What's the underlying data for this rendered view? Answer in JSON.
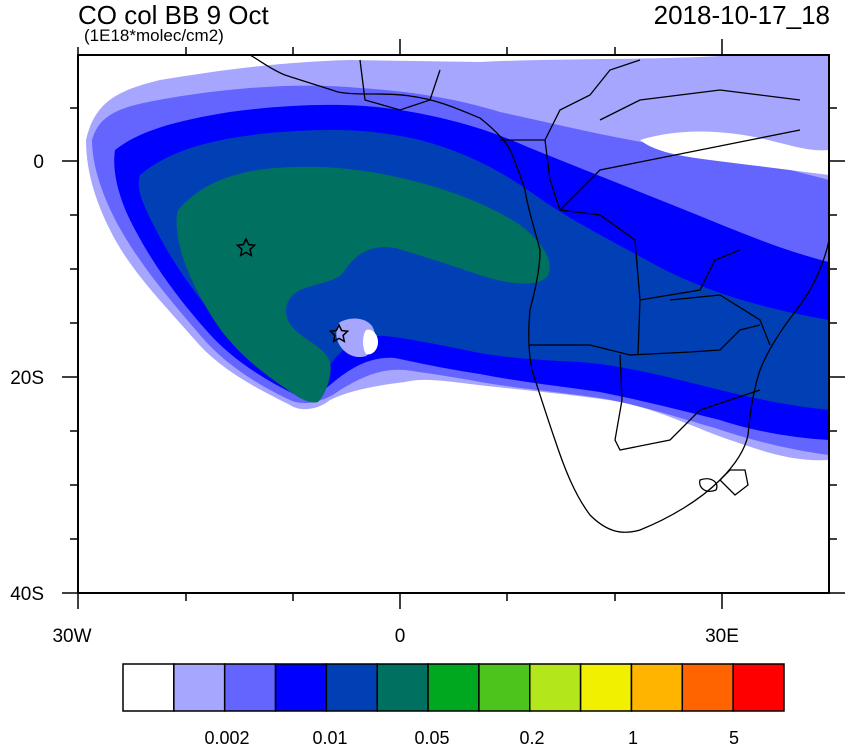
{
  "header": {
    "title": "CO col BB 9 Oct",
    "units": "(1E18*molec/cm2)",
    "timestamp": "2018-10-17_18"
  },
  "map": {
    "lat_labels": [
      "0",
      "20S",
      "40S"
    ],
    "lon_labels": [
      "30W",
      "0",
      "30E"
    ],
    "markers": [
      "star",
      "star"
    ]
  },
  "colorbar": {
    "colors": [
      "#ffffff",
      "#a6a6ff",
      "#6464ff",
      "#0000ff",
      "#0040b4",
      "#007060",
      "#00a820",
      "#4cc41c",
      "#b4e61c",
      "#f0f000",
      "#ffb400",
      "#ff6400",
      "#ff0000"
    ],
    "labels": [
      "0.002",
      "0.01",
      "0.05",
      "0.2",
      "1",
      "5"
    ]
  }
}
